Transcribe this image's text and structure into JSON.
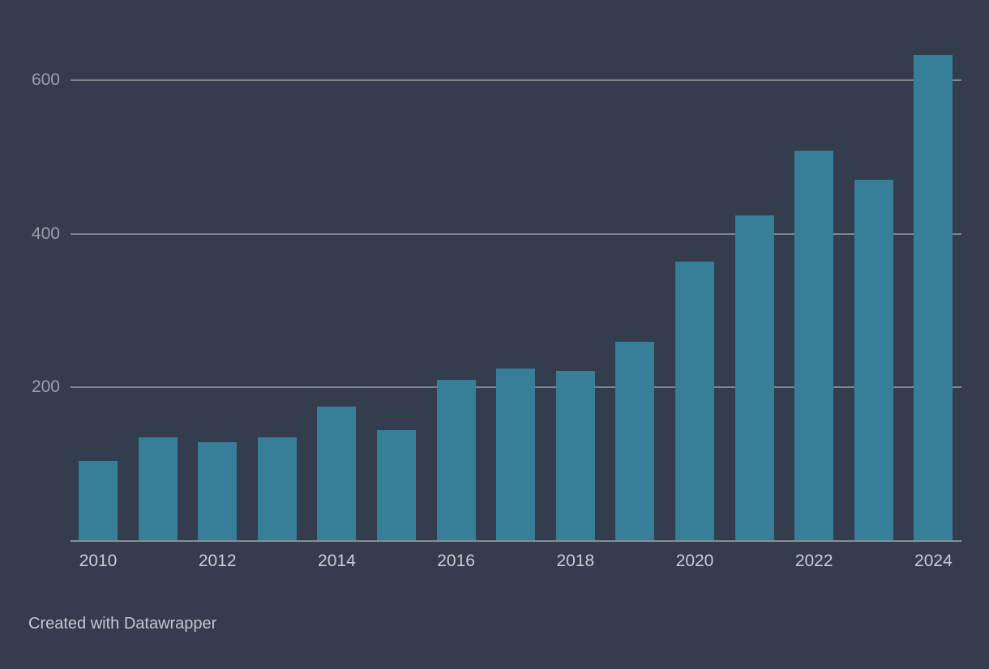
{
  "chart_data": {
    "type": "bar",
    "title": "",
    "xlabel": "",
    "ylabel": "",
    "x": [
      2010,
      2011,
      2012,
      2013,
      2014,
      2015,
      2016,
      2017,
      2018,
      2019,
      2020,
      2021,
      2022,
      2023,
      2024
    ],
    "values": [
      105,
      135,
      129,
      135,
      175,
      145,
      210,
      225,
      222,
      260,
      364,
      424,
      508,
      470,
      633
    ],
    "x_tick_labels": [
      "2010",
      "2012",
      "2014",
      "2016",
      "2018",
      "2020",
      "2022",
      "2024"
    ],
    "y_ticks": [
      200,
      400,
      600
    ],
    "ylim": [
      0,
      660
    ],
    "grid": "horizontal",
    "legend": "none",
    "bar_color": "#377e99"
  },
  "footer": {
    "credit": "Created with Datawrapper"
  },
  "colors": {
    "background": "#333d4e",
    "bar": "#377e99",
    "gridline": "#81848b",
    "axis_line": "#8a8d93",
    "y_tick_label": "#9aa0a8",
    "x_tick_label": "#c8cdd3",
    "footer_text": "#c3c8ce"
  }
}
